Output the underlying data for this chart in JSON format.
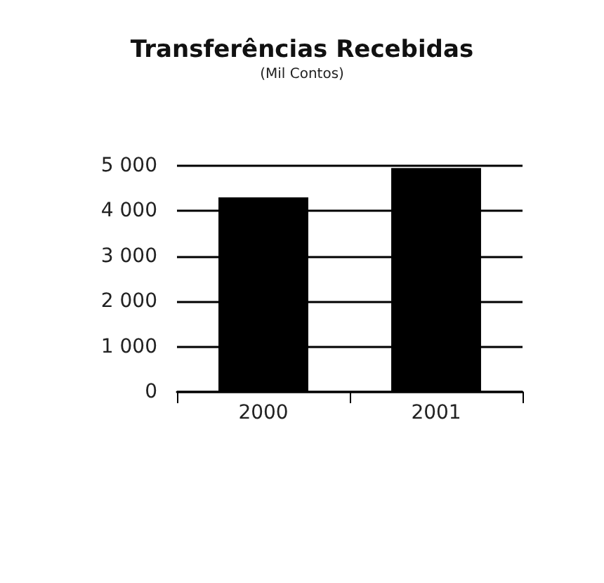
{
  "chart_data": {
    "type": "bar",
    "title": "Transferências Recebidas",
    "subtitle": "(Mil Contos)",
    "categories": [
      "2000",
      "2001"
    ],
    "values": [
      4300,
      4950
    ],
    "color": "#000000",
    "ylim": [
      0,
      5000
    ],
    "yticks": [
      {
        "value": 0,
        "label": "0"
      },
      {
        "value": 1000,
        "label": "1 000"
      },
      {
        "value": 2000,
        "label": "2 000"
      },
      {
        "value": 3000,
        "label": "3 000"
      },
      {
        "value": 4000,
        "label": "4 000"
      },
      {
        "value": 5000,
        "label": "5 000"
      }
    ],
    "grid": "y"
  }
}
